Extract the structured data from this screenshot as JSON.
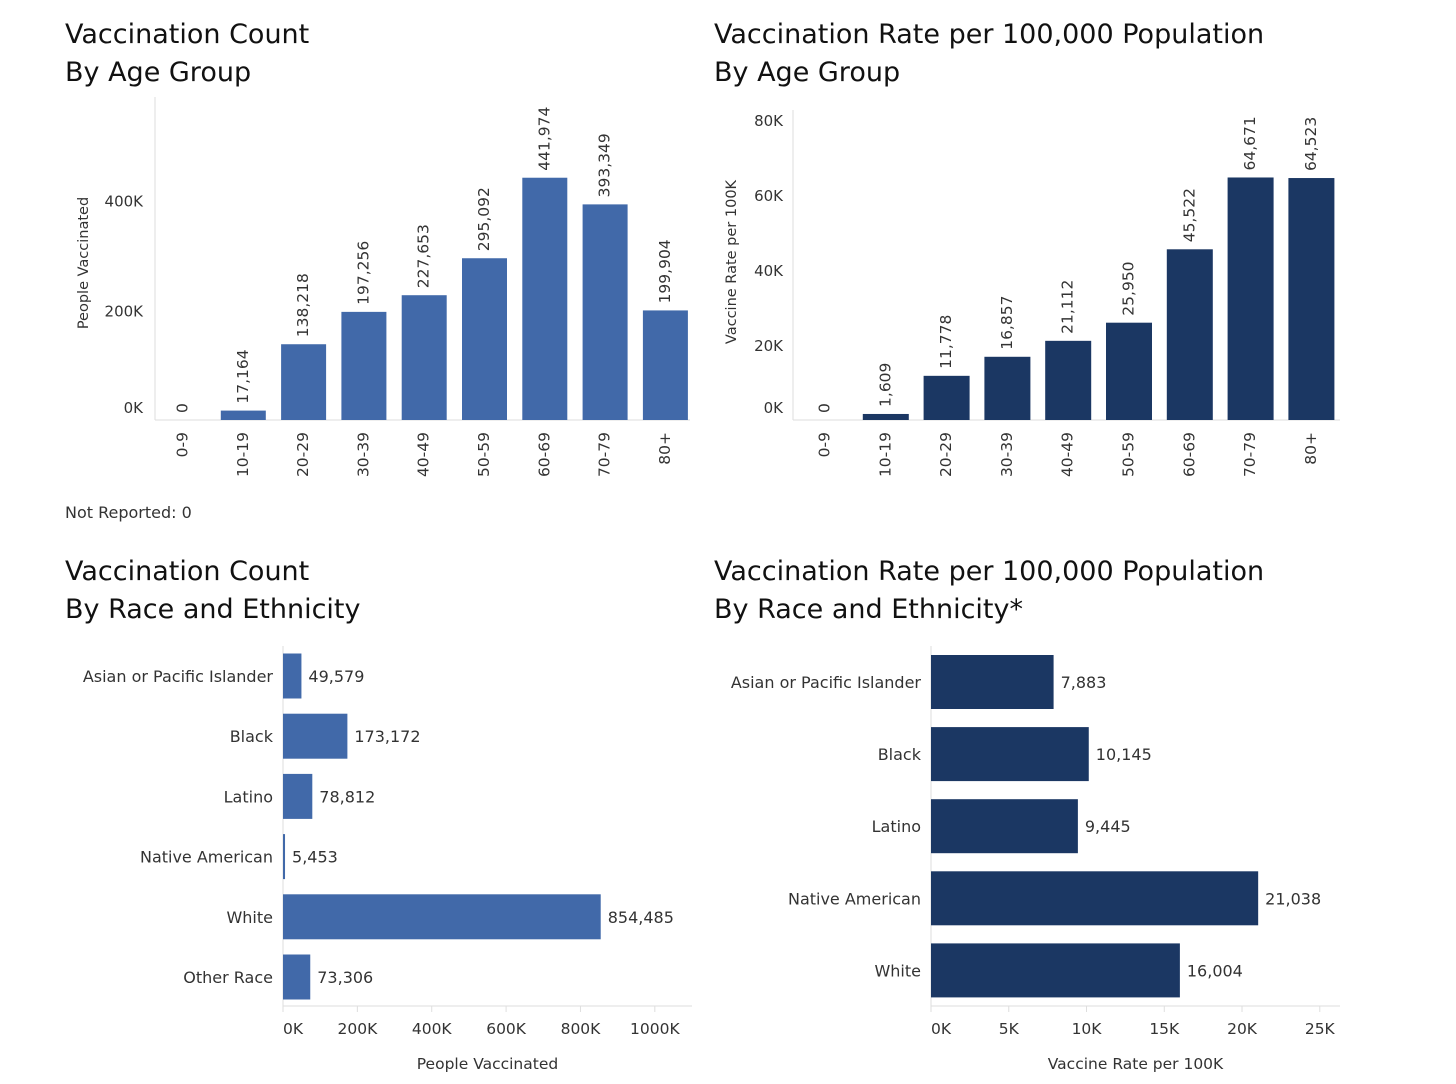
{
  "colors": {
    "medium_blue": "#4169a9",
    "navy": "#1b3763",
    "axis": "#dedede",
    "text": "#333333"
  },
  "note": "Not Reported: 0",
  "chart_data": [
    {
      "id": "count-age",
      "type": "bar",
      "title": [
        "Vaccination Count",
        "By Age Group"
      ],
      "ylabel": "People Vaccinated",
      "xlabel": "",
      "categories": [
        "0-9",
        "10-19",
        "20-29",
        "30-39",
        "40-49",
        "50-59",
        "60-69",
        "70-79",
        "80+"
      ],
      "values": [
        0,
        17164,
        138218,
        197256,
        227653,
        295092,
        441974,
        393349,
        199904
      ],
      "value_labels": [
        "0",
        "17,164",
        "138,218",
        "197,256",
        "227,653",
        "295,092",
        "441,974",
        "393,349",
        "199,904"
      ],
      "yticks": [
        0,
        200000,
        400000
      ],
      "ytick_labels": [
        "0K",
        "200K",
        "400K"
      ],
      "ylim": [
        0,
        571000
      ],
      "color": "#4169a9",
      "grid": false
    },
    {
      "id": "rate-age",
      "type": "bar",
      "title": [
        "Vaccination Rate per 100,000 Population",
        "By Age Group"
      ],
      "ylabel": "Vaccine Rate per 100K",
      "xlabel": "",
      "categories": [
        "0-9",
        "10-19",
        "20-29",
        "30-39",
        "40-49",
        "50-59",
        "60-69",
        "70-79",
        "80+"
      ],
      "values": [
        0,
        1609,
        11778,
        16857,
        21112,
        25950,
        45522,
        64671,
        64523
      ],
      "value_labels": [
        "0",
        "1,609",
        "11,778",
        "16,857",
        "21,112",
        "25,950",
        "45,522",
        "64,671",
        "64,523"
      ],
      "yticks": [
        0,
        20000,
        40000,
        60000,
        80000
      ],
      "ytick_labels": [
        "0K",
        "20K",
        "40K",
        "60K",
        "80K"
      ],
      "ylim": [
        0,
        80000
      ],
      "color": "#1b3763",
      "grid": false
    },
    {
      "id": "count-race",
      "type": "bar",
      "orientation": "horizontal",
      "title": [
        "Vaccination Count",
        "By Race and Ethnicity"
      ],
      "xlabel": "People Vaccinated",
      "ylabel": "",
      "categories": [
        "Asian or Pacific Islander",
        "Black",
        "Latino",
        "Native American",
        "White",
        "Other Race"
      ],
      "values": [
        49579,
        173172,
        78812,
        5453,
        854485,
        73306
      ],
      "value_labels": [
        "49,579",
        "173,172",
        "78,812",
        "5,453",
        "854,485",
        "73,306"
      ],
      "xticks": [
        0,
        200000,
        400000,
        600000,
        800000,
        1000000
      ],
      "xtick_labels": [
        "0K",
        "200K",
        "400K",
        "600K",
        "800K",
        "1000K"
      ],
      "xlim": [
        0,
        1100000
      ],
      "color": "#4169a9",
      "grid": false
    },
    {
      "id": "rate-race",
      "type": "bar",
      "orientation": "horizontal",
      "title": [
        "Vaccination Rate per 100,000 Population",
        "By Race and Ethnicity*"
      ],
      "xlabel": "Vaccine Rate per 100K",
      "ylabel": "",
      "categories": [
        "Asian or Pacific Islander",
        "Black",
        "Latino",
        "Native American",
        "White"
      ],
      "values": [
        7883,
        10145,
        9445,
        21038,
        16004
      ],
      "value_labels": [
        "7,883",
        "10,145",
        "9,445",
        "21,038",
        "16,004"
      ],
      "xticks": [
        0,
        5000,
        10000,
        15000,
        20000,
        25000
      ],
      "xtick_labels": [
        "0K",
        "5K",
        "10K",
        "15K",
        "20K",
        "25K"
      ],
      "xlim": [
        0,
        26300
      ],
      "color": "#1b3763",
      "grid": false
    }
  ]
}
